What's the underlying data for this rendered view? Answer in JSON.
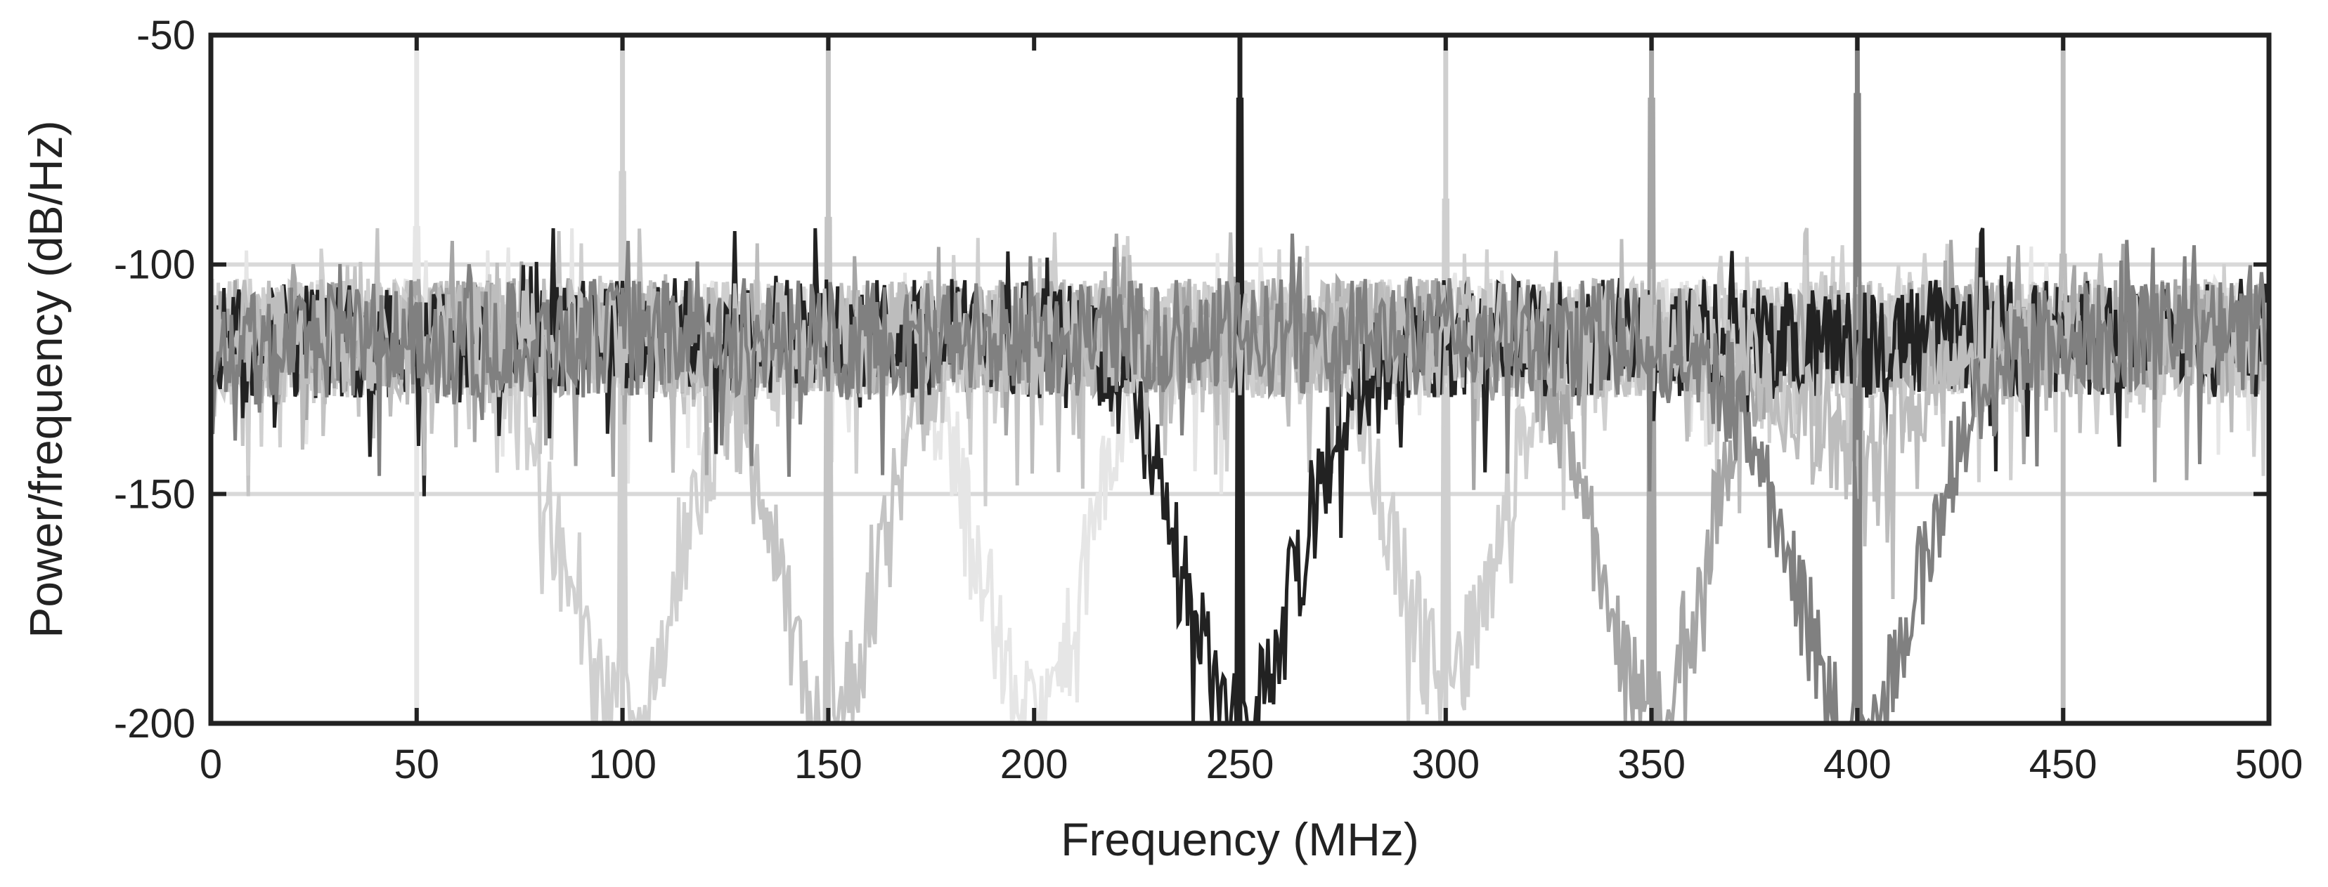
{
  "chart_data": {
    "type": "line",
    "title": "",
    "xlabel": "Frequency (MHz)",
    "ylabel": "Power/frequency (dB/Hz)",
    "xlim": [
      0,
      500
    ],
    "ylim": [
      -200,
      -50
    ],
    "xticks": [
      0,
      50,
      100,
      150,
      200,
      250,
      300,
      350,
      400,
      450,
      500
    ],
    "yticks": [
      -50,
      -100,
      -150,
      -200
    ],
    "grid": "horizontal",
    "legend": "none",
    "noise_floor_db": -116,
    "series": [
      {
        "color": "#e6e6e6",
        "tone_mhz": 50,
        "tone_peak_db": -92,
        "notch_mhz": 200,
        "notch_depth_db": -200,
        "notch_width_mhz": 22
      },
      {
        "color": "#d0d0d0",
        "tone_mhz": 100,
        "tone_peak_db": -80,
        "notch_mhz": 100,
        "notch_depth_db": -200,
        "notch_width_mhz": 25
      },
      {
        "color": "#c4c4c4",
        "tone_mhz": 150,
        "tone_peak_db": -90,
        "notch_mhz": 150,
        "notch_depth_db": -200,
        "notch_width_mhz": 22
      },
      {
        "color": "#cfcfcf",
        "tone_mhz": 300,
        "tone_peak_db": -86,
        "notch_mhz": 300,
        "notch_depth_db": -190,
        "notch_width_mhz": 22
      },
      {
        "color": "#a6a6a6",
        "tone_mhz": 350,
        "tone_peak_db": -64,
        "notch_mhz": 350,
        "notch_depth_db": -198,
        "notch_width_mhz": 22
      },
      {
        "color": "#222222",
        "tone_mhz": 250,
        "tone_peak_db": -64,
        "notch_mhz": 250,
        "notch_depth_db": -200,
        "notch_width_mhz": 25
      },
      {
        "color": "#bdbdbd",
        "tone_mhz": 450,
        "tone_peak_db": -98,
        "notch_mhz": 400,
        "notch_depth_db": -140,
        "notch_width_mhz": 30
      },
      {
        "color": "#808080",
        "tone_mhz": 400,
        "tone_peak_db": -63,
        "notch_mhz": 400,
        "notch_depth_db": -200,
        "notch_width_mhz": 28
      }
    ]
  }
}
